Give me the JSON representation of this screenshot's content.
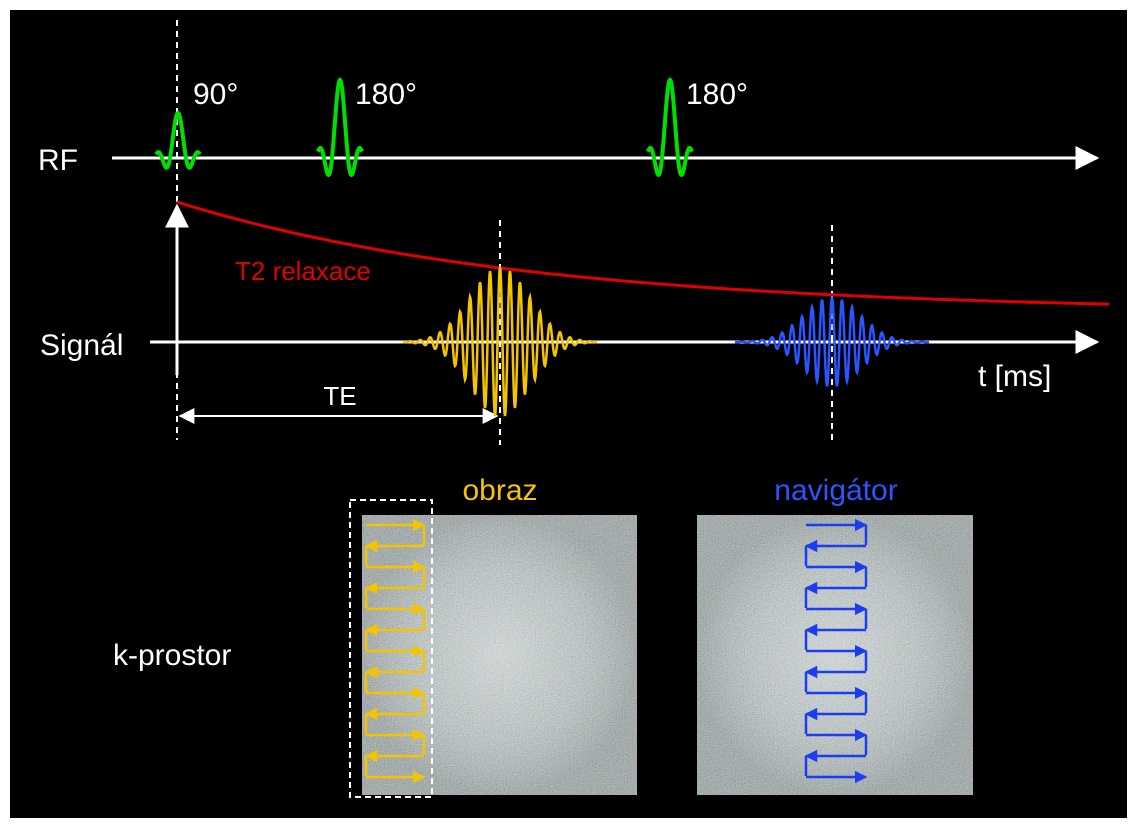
{
  "rf": {
    "label": "RF",
    "pulses": [
      "90°",
      "180°",
      "180°"
    ]
  },
  "signal": {
    "label": "Signál",
    "relaxation": "T2 relaxace",
    "time_axis": "t [ms]",
    "echo_time": "TE"
  },
  "k_space": {
    "label": "k-prostor",
    "image": "obraz",
    "navigator": "navigátor"
  }
}
